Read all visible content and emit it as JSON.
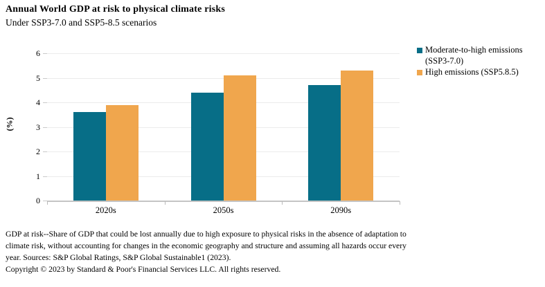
{
  "chart_data": {
    "type": "bar",
    "title": "Annual World GDP at risk to physical climate risks",
    "subtitle": "Under SSP3-7.0 and SSP5-8.5 scenarios",
    "categories": [
      "2020s",
      "2050s",
      "2090s"
    ],
    "series": [
      {
        "name": "Moderate-to-high emissions (SSP3-7.0)",
        "color": "#076e87",
        "values": [
          3.6,
          4.4,
          4.7
        ]
      },
      {
        "name": "High emissions (SSP5.8.5)",
        "color": "#f0a64d",
        "values": [
          3.9,
          5.1,
          5.3
        ]
      }
    ],
    "xlabel": "",
    "ylabel": "(%)",
    "ylim": [
      0,
      6
    ],
    "yticks": [
      0,
      1,
      2,
      3,
      4,
      5,
      6
    ],
    "grid": true,
    "legend_position": "right"
  },
  "colors": {
    "series1": "#076e87",
    "series2": "#f0a64d",
    "gridline": "#ebebeb",
    "axis": "#c4c4c4",
    "text": "#000000",
    "background": "#ffffff"
  },
  "notes": {
    "footnote": "GDP at risk--Share of GDP that could be lost annually due to high exposure to physical risks in the absence of adaptation to climate risk, without accounting for changes in the economic geography and structure and assuming all hazards occur every year. Sources: S&P Global Ratings, S&P Global Sustainable1 (2023).",
    "copyright": "Copyright © 2023 by Standard & Poor's Financial Services LLC. All rights reserved."
  }
}
